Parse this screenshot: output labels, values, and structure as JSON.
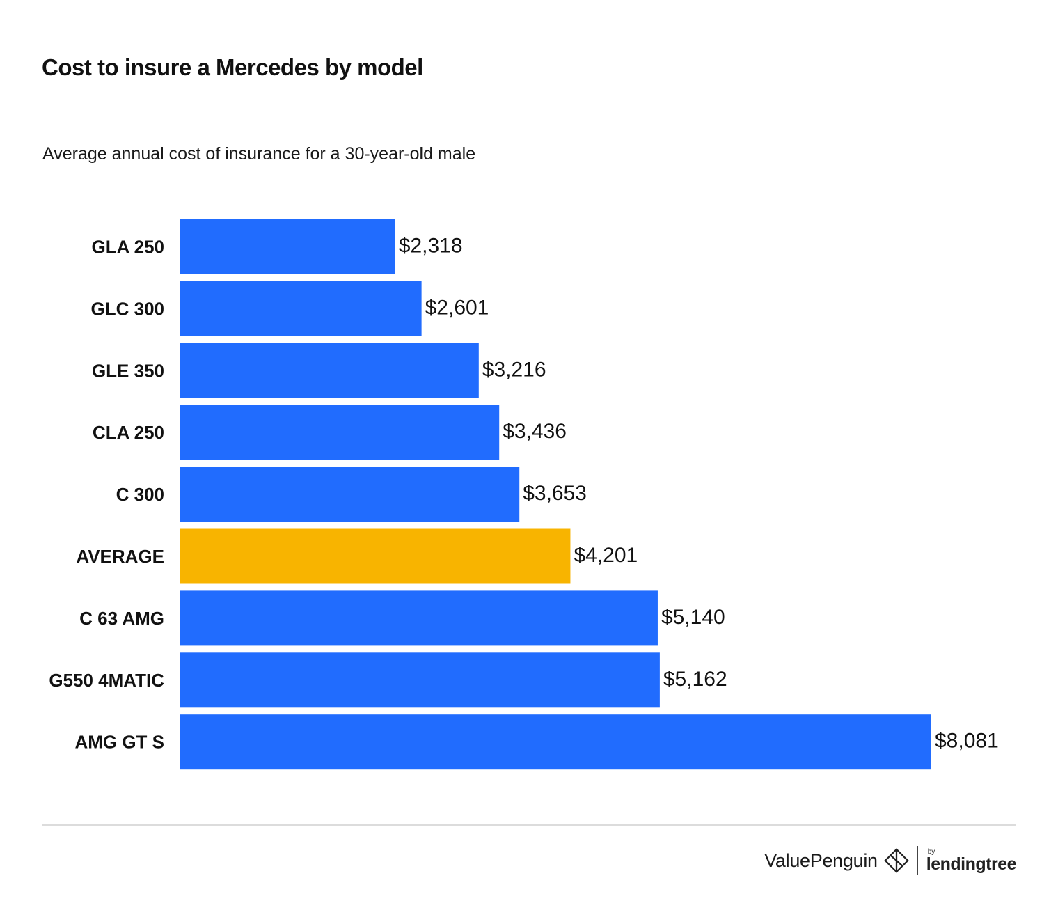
{
  "header": {
    "title": "Cost to insure a Mercedes by model",
    "subtitle": "Average annual cost of insurance for a 30-year-old male"
  },
  "chart_data": {
    "type": "bar",
    "orientation": "horizontal",
    "title": "Cost to insure a Mercedes by model",
    "subtitle": "Average annual cost of insurance for a 30-year-old male",
    "categories": [
      "GLA 250",
      "GLC 300",
      "GLE 350",
      "CLA 250",
      "C 300",
      "AVERAGE",
      "C 63 AMG",
      "G550 4MATIC",
      "AMG GT S"
    ],
    "values": [
      2318,
      2601,
      3216,
      3436,
      3653,
      4201,
      5140,
      5162,
      8081
    ],
    "value_labels": [
      "$2,318",
      "$2,601",
      "$3,216",
      "$3,436",
      "$3,653",
      "$4,201",
      "$5,140",
      "$5,162",
      "$8,081"
    ],
    "highlight_category": "AVERAGE",
    "xlim": [
      0,
      8081
    ],
    "grid": false,
    "legend": "none",
    "colors": {
      "bar": "#216cfe",
      "highlight": "#f8b400"
    }
  },
  "footer": {
    "brand": "ValuePenguin",
    "by": "by",
    "partner": "lendingtree"
  }
}
